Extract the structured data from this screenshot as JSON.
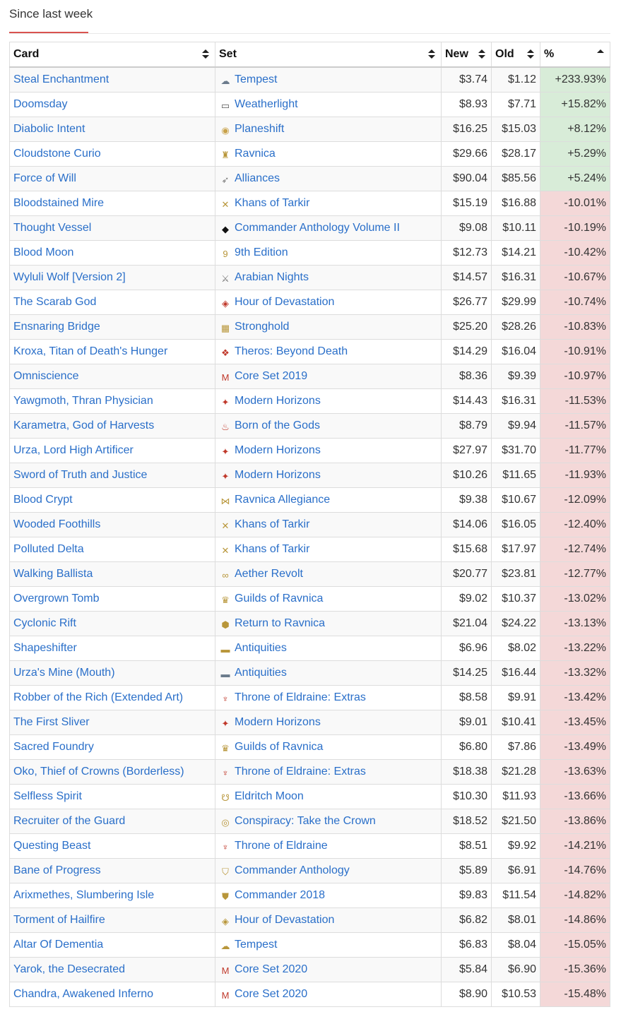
{
  "heading": "Since last week",
  "columns": {
    "card": "Card",
    "set": "Set",
    "new": "New",
    "old": "Old",
    "pct": "%"
  },
  "colors": {
    "link": "#2a6fc9",
    "up_bg": "#d8ecd8",
    "down_bg": "#f4d8d8",
    "accent": "#d9534f"
  },
  "rows": [
    {
      "card": "Steal Enchantment",
      "set": "Tempest",
      "icon": "tempest-icon",
      "glyph": "☁",
      "color": "#6b7b8c",
      "new": "$3.74",
      "old": "$1.12",
      "pct": "+233.93%",
      "up": true
    },
    {
      "card": "Doomsday",
      "set": "Weatherlight",
      "icon": "weatherlight-icon",
      "glyph": "▭",
      "color": "#555",
      "new": "$8.93",
      "old": "$7.71",
      "pct": "+15.82%",
      "up": true
    },
    {
      "card": "Diabolic Intent",
      "set": "Planeshift",
      "icon": "planeshift-icon",
      "glyph": "◉",
      "color": "#c8a24a",
      "new": "$16.25",
      "old": "$15.03",
      "pct": "+8.12%",
      "up": true
    },
    {
      "card": "Cloudstone Curio",
      "set": "Ravnica",
      "icon": "ravnica-icon",
      "glyph": "♜",
      "color": "#b8963a",
      "new": "$29.66",
      "old": "$28.17",
      "pct": "+5.29%",
      "up": true
    },
    {
      "card": "Force of Will",
      "set": "Alliances",
      "icon": "alliances-icon",
      "glyph": "➶",
      "color": "#777",
      "new": "$90.04",
      "old": "$85.56",
      "pct": "+5.24%",
      "up": true
    },
    {
      "card": "Bloodstained Mire",
      "set": "Khans of Tarkir",
      "icon": "khans-of-tarkir-icon",
      "glyph": "✕",
      "color": "#b8963a",
      "new": "$15.19",
      "old": "$16.88",
      "pct": "-10.01%",
      "up": false
    },
    {
      "card": "Thought Vessel",
      "set": "Commander Anthology Volume II",
      "icon": "commander-anthology-2-icon",
      "glyph": "◆",
      "color": "#111",
      "new": "$9.08",
      "old": "$10.11",
      "pct": "-10.19%",
      "up": false
    },
    {
      "card": "Blood Moon",
      "set": "9th Edition",
      "icon": "9th-edition-icon",
      "glyph": "9",
      "color": "#b8963a",
      "new": "$12.73",
      "old": "$14.21",
      "pct": "-10.42%",
      "up": false
    },
    {
      "card": "Wyluli Wolf [Version 2]",
      "set": "Arabian Nights",
      "icon": "arabian-nights-icon",
      "glyph": "⚔",
      "color": "#777",
      "new": "$14.57",
      "old": "$16.31",
      "pct": "-10.67%",
      "up": false
    },
    {
      "card": "The Scarab God",
      "set": "Hour of Devastation",
      "icon": "hour-of-devastation-icon",
      "glyph": "◈",
      "color": "#c0392b",
      "new": "$26.77",
      "old": "$29.99",
      "pct": "-10.74%",
      "up": false
    },
    {
      "card": "Ensnaring Bridge",
      "set": "Stronghold",
      "icon": "stronghold-icon",
      "glyph": "▦",
      "color": "#b8963a",
      "new": "$25.20",
      "old": "$28.26",
      "pct": "-10.83%",
      "up": false
    },
    {
      "card": "Kroxa, Titan of Death's Hunger",
      "set": "Theros: Beyond Death",
      "icon": "theros-beyond-death-icon",
      "glyph": "❖",
      "color": "#c0392b",
      "new": "$14.29",
      "old": "$16.04",
      "pct": "-10.91%",
      "up": false
    },
    {
      "card": "Omniscience",
      "set": "Core Set 2019",
      "icon": "core-set-2019-icon",
      "glyph": "M",
      "color": "#c0392b",
      "new": "$8.36",
      "old": "$9.39",
      "pct": "-10.97%",
      "up": false
    },
    {
      "card": "Yawgmoth, Thran Physician",
      "set": "Modern Horizons",
      "icon": "modern-horizons-icon",
      "glyph": "✦",
      "color": "#c0392b",
      "new": "$14.43",
      "old": "$16.31",
      "pct": "-11.53%",
      "up": false
    },
    {
      "card": "Karametra, God of Harvests",
      "set": "Born of the Gods",
      "icon": "born-of-the-gods-icon",
      "glyph": "♨",
      "color": "#c0392b",
      "new": "$8.79",
      "old": "$9.94",
      "pct": "-11.57%",
      "up": false
    },
    {
      "card": "Urza, Lord High Artificer",
      "set": "Modern Horizons",
      "icon": "modern-horizons-icon",
      "glyph": "✦",
      "color": "#c0392b",
      "new": "$27.97",
      "old": "$31.70",
      "pct": "-11.77%",
      "up": false
    },
    {
      "card": "Sword of Truth and Justice",
      "set": "Modern Horizons",
      "icon": "modern-horizons-icon",
      "glyph": "✦",
      "color": "#c0392b",
      "new": "$10.26",
      "old": "$11.65",
      "pct": "-11.93%",
      "up": false
    },
    {
      "card": "Blood Crypt",
      "set": "Ravnica Allegiance",
      "icon": "ravnica-allegiance-icon",
      "glyph": "⋈",
      "color": "#b8963a",
      "new": "$9.38",
      "old": "$10.67",
      "pct": "-12.09%",
      "up": false
    },
    {
      "card": "Wooded Foothills",
      "set": "Khans of Tarkir",
      "icon": "khans-of-tarkir-icon",
      "glyph": "✕",
      "color": "#b8963a",
      "new": "$14.06",
      "old": "$16.05",
      "pct": "-12.40%",
      "up": false
    },
    {
      "card": "Polluted Delta",
      "set": "Khans of Tarkir",
      "icon": "khans-of-tarkir-icon",
      "glyph": "✕",
      "color": "#b8963a",
      "new": "$15.68",
      "old": "$17.97",
      "pct": "-12.74%",
      "up": false
    },
    {
      "card": "Walking Ballista",
      "set": "Aether Revolt",
      "icon": "aether-revolt-icon",
      "glyph": "∞",
      "color": "#b8963a",
      "new": "$20.77",
      "old": "$23.81",
      "pct": "-12.77%",
      "up": false
    },
    {
      "card": "Overgrown Tomb",
      "set": "Guilds of Ravnica",
      "icon": "guilds-of-ravnica-icon",
      "glyph": "♛",
      "color": "#b8963a",
      "new": "$9.02",
      "old": "$10.37",
      "pct": "-13.02%",
      "up": false
    },
    {
      "card": "Cyclonic Rift",
      "set": "Return to Ravnica",
      "icon": "return-to-ravnica-icon",
      "glyph": "⬢",
      "color": "#b8963a",
      "new": "$21.04",
      "old": "$24.22",
      "pct": "-13.13%",
      "up": false
    },
    {
      "card": "Shapeshifter",
      "set": "Antiquities",
      "icon": "antiquities-icon",
      "glyph": "▬",
      "color": "#b8963a",
      "new": "$6.96",
      "old": "$8.02",
      "pct": "-13.22%",
      "up": false
    },
    {
      "card": "Urza's Mine (Mouth)",
      "set": "Antiquities",
      "icon": "antiquities-icon",
      "glyph": "▬",
      "color": "#6b7b8c",
      "new": "$14.25",
      "old": "$16.44",
      "pct": "-13.32%",
      "up": false
    },
    {
      "card": "Robber of the Rich (Extended Art)",
      "set": "Throne of Eldraine: Extras",
      "icon": "throne-of-eldraine-extras-icon",
      "glyph": "♆",
      "color": "#c0392b",
      "new": "$8.58",
      "old": "$9.91",
      "pct": "-13.42%",
      "up": false
    },
    {
      "card": "The First Sliver",
      "set": "Modern Horizons",
      "icon": "modern-horizons-icon",
      "glyph": "✦",
      "color": "#c0392b",
      "new": "$9.01",
      "old": "$10.41",
      "pct": "-13.45%",
      "up": false
    },
    {
      "card": "Sacred Foundry",
      "set": "Guilds of Ravnica",
      "icon": "guilds-of-ravnica-icon",
      "glyph": "♛",
      "color": "#b8963a",
      "new": "$6.80",
      "old": "$7.86",
      "pct": "-13.49%",
      "up": false
    },
    {
      "card": "Oko, Thief of Crowns (Borderless)",
      "set": "Throne of Eldraine: Extras",
      "icon": "throne-of-eldraine-extras-icon",
      "glyph": "♆",
      "color": "#c0392b",
      "new": "$18.38",
      "old": "$21.28",
      "pct": "-13.63%",
      "up": false
    },
    {
      "card": "Selfless Spirit",
      "set": "Eldritch Moon",
      "icon": "eldritch-moon-icon",
      "glyph": "☋",
      "color": "#b8963a",
      "new": "$10.30",
      "old": "$11.93",
      "pct": "-13.66%",
      "up": false
    },
    {
      "card": "Recruiter of the Guard",
      "set": "Conspiracy: Take the Crown",
      "icon": "conspiracy-take-the-crown-icon",
      "glyph": "◎",
      "color": "#b8963a",
      "new": "$18.52",
      "old": "$21.50",
      "pct": "-13.86%",
      "up": false
    },
    {
      "card": "Questing Beast",
      "set": "Throne of Eldraine",
      "icon": "throne-of-eldraine-icon",
      "glyph": "♆",
      "color": "#c0392b",
      "new": "$8.51",
      "old": "$9.92",
      "pct": "-14.21%",
      "up": false
    },
    {
      "card": "Bane of Progress",
      "set": "Commander Anthology",
      "icon": "commander-anthology-icon",
      "glyph": "⛉",
      "color": "#b8963a",
      "new": "$5.89",
      "old": "$6.91",
      "pct": "-14.76%",
      "up": false
    },
    {
      "card": "Arixmethes, Slumbering Isle",
      "set": "Commander 2018",
      "icon": "commander-2018-icon",
      "glyph": "⛊",
      "color": "#b8963a",
      "new": "$9.83",
      "old": "$11.54",
      "pct": "-14.82%",
      "up": false
    },
    {
      "card": "Torment of Hailfire",
      "set": "Hour of Devastation",
      "icon": "hour-of-devastation-icon",
      "glyph": "◈",
      "color": "#b8963a",
      "new": "$6.82",
      "old": "$8.01",
      "pct": "-14.86%",
      "up": false
    },
    {
      "card": "Altar Of Dementia",
      "set": "Tempest",
      "icon": "tempest-icon",
      "glyph": "☁",
      "color": "#b8963a",
      "new": "$6.83",
      "old": "$8.04",
      "pct": "-15.05%",
      "up": false
    },
    {
      "card": "Yarok, the Desecrated",
      "set": "Core Set 2020",
      "icon": "core-set-2020-icon",
      "glyph": "M",
      "color": "#c0392b",
      "new": "$5.84",
      "old": "$6.90",
      "pct": "-15.36%",
      "up": false
    },
    {
      "card": "Chandra, Awakened Inferno",
      "set": "Core Set 2020",
      "icon": "core-set-2020-icon",
      "glyph": "M",
      "color": "#c0392b",
      "new": "$8.90",
      "old": "$10.53",
      "pct": "-15.48%",
      "up": false
    }
  ]
}
